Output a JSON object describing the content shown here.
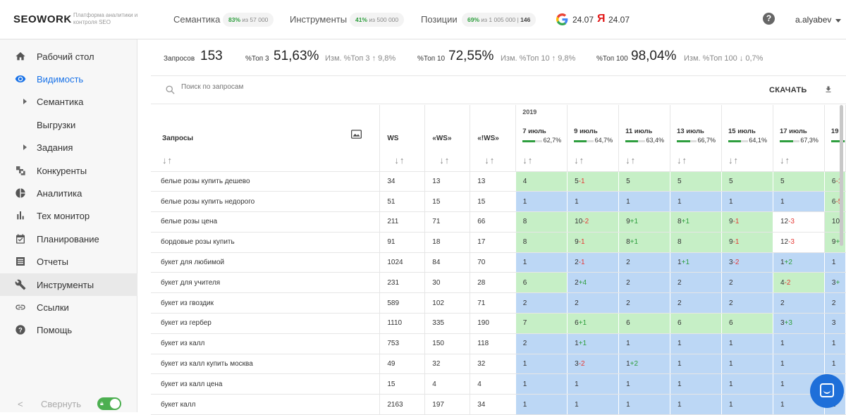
{
  "header": {
    "logo": "SEOWORK",
    "logo_sub": "Платформа аналитики и контроля SEO",
    "semantika_label": "Семантика",
    "semantika_pct": "83%",
    "semantika_rest": "из 57 000",
    "instr_label": "Инструменты",
    "instr_pct": "41%",
    "instr_rest": "из 500 000",
    "pos_label": "Позиции",
    "pos_pct": "69%",
    "pos_rest": "из 1 005 000 |",
    "pos_extra": "146",
    "google_date": "24.07",
    "yandex_letter": "Я",
    "yandex_date": "24.07",
    "help": "?",
    "user": "a.alyabev"
  },
  "sidebar": {
    "items": [
      {
        "label": "Рабочий стол",
        "icon": "home-icon"
      },
      {
        "label": "Видимость",
        "icon": "eye-icon"
      },
      {
        "label": "Семантика"
      },
      {
        "label": "Выгрузки"
      },
      {
        "label": "Задания"
      },
      {
        "label": "Конкуренты",
        "icon": "competitors-icon"
      },
      {
        "label": "Аналитика",
        "icon": "pie-chart-icon"
      },
      {
        "label": "Тех монитор",
        "icon": "bar-chart-icon"
      },
      {
        "label": "Планирование",
        "icon": "calendar-check-icon"
      },
      {
        "label": "Отчеты",
        "icon": "list-icon"
      },
      {
        "label": "Инструменты",
        "icon": "wrench-icon"
      },
      {
        "label": "Ссылки",
        "icon": "link-icon"
      },
      {
        "label": "Помощь",
        "icon": "help-circle-icon"
      }
    ],
    "collapse_label": "Свернуть",
    "chevron": "<"
  },
  "stats": {
    "queries_label": "Запросов",
    "queries_value": "153",
    "top3_label": "%Топ 3",
    "top3_value": "51,63%",
    "top3_change": "Изм. %Топ 3 ↑ 9,8%",
    "top10_label": "%Топ 10",
    "top10_value": "72,55%",
    "top10_change": "Изм. %Топ 10 ↑ 9,8%",
    "top100_label": "%Топ 100",
    "top100_value": "98,04%",
    "top100_change": "Изм. %Топ 100 ↓ 0,7%"
  },
  "toolbar": {
    "search_placeholder": "Поиск по запросам",
    "download_label": "СКАЧАТЬ"
  },
  "table": {
    "col_queries": "Запросы",
    "col_ws": "WS",
    "col_qws": "«WS»",
    "col_iws": "«!WS»",
    "sort": "↓↑",
    "year": "2019",
    "dates": [
      {
        "label": "7 июль",
        "pct": "62,7%",
        "level": 0.627
      },
      {
        "label": "9 июль",
        "pct": "64,7%",
        "level": 0.647
      },
      {
        "label": "11 июль",
        "pct": "63,4%",
        "level": 0.634
      },
      {
        "label": "13 июль",
        "pct": "66,7%",
        "level": 0.667
      },
      {
        "label": "15 июль",
        "pct": "64,1%",
        "level": 0.641
      },
      {
        "label": "17 июль",
        "pct": "67,3%",
        "level": 0.673
      },
      {
        "label": "19",
        "pct": "",
        "level": 0.68
      }
    ],
    "rows": [
      {
        "q": "белые розы купить дешево",
        "ws": "34",
        "qws": "13",
        "iws": "13",
        "cells": [
          [
            "4",
            "",
            "g"
          ],
          [
            "5",
            "-1",
            "g"
          ],
          [
            "5",
            "",
            "g"
          ],
          [
            "5",
            "",
            "g"
          ],
          [
            "5",
            "",
            "g"
          ],
          [
            "5",
            "",
            "g"
          ],
          [
            "6",
            "-1",
            "g"
          ]
        ]
      },
      {
        "q": "белые розы купить недорого",
        "ws": "51",
        "qws": "15",
        "iws": "15",
        "cells": [
          [
            "1",
            "",
            "b"
          ],
          [
            "1",
            "",
            "b"
          ],
          [
            "1",
            "",
            "b"
          ],
          [
            "1",
            "",
            "b"
          ],
          [
            "1",
            "",
            "b"
          ],
          [
            "1",
            "",
            "b"
          ],
          [
            "6",
            "-5",
            "g"
          ]
        ]
      },
      {
        "q": "белые розы цена",
        "ws": "211",
        "qws": "71",
        "iws": "66",
        "cells": [
          [
            "8",
            "",
            "g"
          ],
          [
            "10",
            "-2",
            "g"
          ],
          [
            "9",
            "+1",
            "g"
          ],
          [
            "8",
            "+1",
            "g"
          ],
          [
            "9",
            "-1",
            "g"
          ],
          [
            "12",
            "-3",
            "w"
          ],
          [
            "10",
            "",
            "g"
          ]
        ]
      },
      {
        "q": "бордовые розы купить",
        "ws": "91",
        "qws": "18",
        "iws": "17",
        "cells": [
          [
            "8",
            "",
            "g"
          ],
          [
            "9",
            "-1",
            "g"
          ],
          [
            "8",
            "+1",
            "g"
          ],
          [
            "8",
            "",
            "g"
          ],
          [
            "9",
            "-1",
            "g"
          ],
          [
            "12",
            "-3",
            "w"
          ],
          [
            "9",
            "+",
            "g"
          ]
        ]
      },
      {
        "q": "букет для любимой",
        "ws": "1024",
        "qws": "84",
        "iws": "70",
        "cells": [
          [
            "1",
            "",
            "b"
          ],
          [
            "2",
            "-1",
            "b"
          ],
          [
            "2",
            "",
            "b"
          ],
          [
            "1",
            "+1",
            "b"
          ],
          [
            "3",
            "-2",
            "b"
          ],
          [
            "1",
            "+2",
            "b"
          ],
          [
            "1",
            "",
            "b"
          ]
        ]
      },
      {
        "q": "букет для учителя",
        "ws": "231",
        "qws": "30",
        "iws": "28",
        "cells": [
          [
            "6",
            "",
            "g"
          ],
          [
            "2",
            "+4",
            "b"
          ],
          [
            "2",
            "",
            "b"
          ],
          [
            "2",
            "",
            "b"
          ],
          [
            "2",
            "",
            "b"
          ],
          [
            "4",
            "-2",
            "g"
          ],
          [
            "3",
            "+",
            "b"
          ]
        ]
      },
      {
        "q": "букет из гвоздик",
        "ws": "589",
        "qws": "102",
        "iws": "71",
        "cells": [
          [
            "2",
            "",
            "b"
          ],
          [
            "2",
            "",
            "b"
          ],
          [
            "2",
            "",
            "b"
          ],
          [
            "2",
            "",
            "b"
          ],
          [
            "2",
            "",
            "b"
          ],
          [
            "2",
            "",
            "b"
          ],
          [
            "2",
            "",
            "b"
          ]
        ]
      },
      {
        "q": "букет из гербер",
        "ws": "1110",
        "qws": "335",
        "iws": "190",
        "cells": [
          [
            "7",
            "",
            "g"
          ],
          [
            "6",
            "+1",
            "g"
          ],
          [
            "6",
            "",
            "g"
          ],
          [
            "6",
            "",
            "g"
          ],
          [
            "6",
            "",
            "g"
          ],
          [
            "3",
            "+3",
            "b"
          ],
          [
            "3",
            "",
            "b"
          ]
        ]
      },
      {
        "q": "букет из калл",
        "ws": "753",
        "qws": "150",
        "iws": "118",
        "cells": [
          [
            "2",
            "",
            "b"
          ],
          [
            "1",
            "+1",
            "b"
          ],
          [
            "1",
            "",
            "b"
          ],
          [
            "1",
            "",
            "b"
          ],
          [
            "1",
            "",
            "b"
          ],
          [
            "1",
            "",
            "b"
          ],
          [
            "1",
            "",
            "b"
          ]
        ]
      },
      {
        "q": "букет из калл купить москва",
        "ws": "49",
        "qws": "32",
        "iws": "32",
        "cells": [
          [
            "1",
            "",
            "b"
          ],
          [
            "3",
            "-2",
            "b"
          ],
          [
            "1",
            "+2",
            "b"
          ],
          [
            "1",
            "",
            "b"
          ],
          [
            "1",
            "",
            "b"
          ],
          [
            "1",
            "",
            "b"
          ],
          [
            "1",
            "",
            "b"
          ]
        ]
      },
      {
        "q": "букет из калл цена",
        "ws": "15",
        "qws": "4",
        "iws": "4",
        "cells": [
          [
            "1",
            "",
            "b"
          ],
          [
            "1",
            "",
            "b"
          ],
          [
            "1",
            "",
            "b"
          ],
          [
            "1",
            "",
            "b"
          ],
          [
            "1",
            "",
            "b"
          ],
          [
            "1",
            "",
            "b"
          ],
          [
            "1",
            "",
            "b"
          ]
        ]
      },
      {
        "q": "букет калл",
        "ws": "2163",
        "qws": "197",
        "iws": "34",
        "cells": [
          [
            "1",
            "",
            "b"
          ],
          [
            "1",
            "",
            "b"
          ],
          [
            "1",
            "",
            "b"
          ],
          [
            "1",
            "",
            "b"
          ],
          [
            "1",
            "",
            "b"
          ],
          [
            "1",
            "",
            "b"
          ],
          [
            "1",
            "",
            "b"
          ]
        ]
      }
    ]
  },
  "colors": {
    "accent": "#1a73e8",
    "green_cell": "#c6efc6",
    "blue_cell": "#bcd7f5",
    "positive": "#2e9e3e",
    "negative": "#e53935"
  }
}
